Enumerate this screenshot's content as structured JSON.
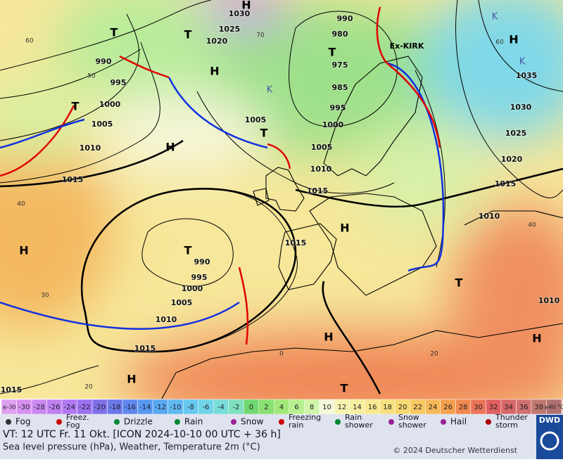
{
  "map": {
    "pressure_labels": [
      "1030",
      "1025",
      "1020",
      "990",
      "995",
      "1000",
      "1005",
      "1010",
      "1015",
      "990",
      "980",
      "975",
      "985",
      "995",
      "1000",
      "1005",
      "1005",
      "1010",
      "1015",
      "1015",
      "1035",
      "1030",
      "1025",
      "1020",
      "1015",
      "1010",
      "1010",
      "990",
      "995",
      "1000",
      "1005",
      "1010",
      "1015",
      "1015"
    ],
    "highs": [
      "H",
      "H",
      "H",
      "H",
      "H",
      "H",
      "H",
      "H",
      "H"
    ],
    "lows": [
      "T",
      "T",
      "T",
      "T",
      "T",
      "T",
      "T",
      "T"
    ],
    "cold_centers": [
      "K",
      "K",
      "K"
    ],
    "storm_name": "Ex-KIRK",
    "grid_labels": [
      "60",
      "50",
      "40",
      "30",
      "20",
      "70",
      "60",
      "40",
      "20",
      "0"
    ]
  },
  "color_scale": {
    "labels": [
      "≤-30",
      "-30",
      "-28",
      "-26",
      "-24",
      "-22",
      "-20",
      "-18",
      "-16",
      "-14",
      "-12",
      "-10",
      "-8",
      "-6",
      "-4",
      "-2",
      "0",
      "2",
      "4",
      "6",
      "8",
      "10",
      "12",
      "14",
      "16",
      "18",
      "20",
      "22",
      "24",
      "26",
      "28",
      "30",
      "32",
      "34",
      "36",
      "38",
      "≥40 °C"
    ],
    "colors": [
      "#e0a0f0",
      "#d890f0",
      "#cc88f0",
      "#c080f0",
      "#b078f0",
      "#9c70ee",
      "#8070e8",
      "#6a78e8",
      "#5e88ec",
      "#5898f0",
      "#58a8f0",
      "#60b8f0",
      "#68c8f0",
      "#70d4e8",
      "#78dcd8",
      "#80e0c0",
      "#70d870",
      "#88e070",
      "#a0e878",
      "#b8f090",
      "#d0f4a8",
      "#f4f8d8",
      "#f8f4b0",
      "#f8f0a0",
      "#f8e890",
      "#f8e080",
      "#f8d870",
      "#f8c860",
      "#f8b858",
      "#f4a050",
      "#f08850",
      "#ec7458",
      "#e06060",
      "#d86868",
      "#d07070",
      "#c07870",
      "#b07070"
    ]
  },
  "legend": [
    [
      "Fog"
    ],
    [
      "Freez.",
      "Fog"
    ],
    [
      "Drizzle"
    ],
    [
      "Rain"
    ],
    [
      "Snow"
    ],
    [
      "Freezing",
      "rain"
    ],
    [
      "Rain",
      "shower"
    ],
    [
      "Snow",
      "shower"
    ],
    [
      "Hail"
    ],
    [
      "Thunder",
      "storm"
    ]
  ],
  "footer": {
    "valid_time": "VT: 12 UTC Fr.  11 Okt. [ICON 2024-10-10  00 UTC + 36 h]",
    "description": "Sea level pressure (hPa), Weather, Temperature 2m (°C)",
    "copyright": "© 2024 Deutscher Wetterdienst",
    "logo": "DWD"
  }
}
